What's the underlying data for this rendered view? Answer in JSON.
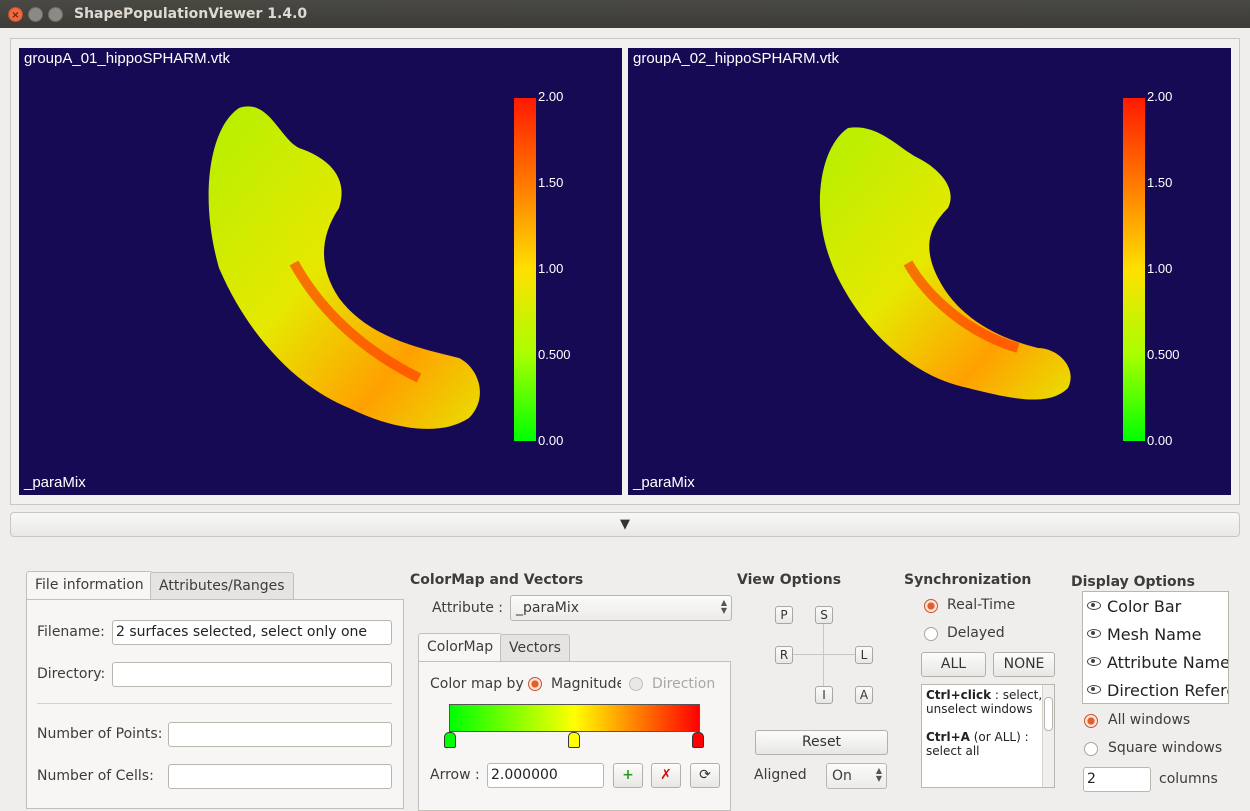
{
  "window": {
    "title": "ShapePopulationViewer 1.4.0"
  },
  "viewports": [
    {
      "mesh_name": "groupA_01_hippoSPHARM.vtk",
      "attribute": "_paraMix",
      "colorbar_ticks": [
        "2.00",
        "1.50",
        "1.00",
        "0.500",
        "0.00"
      ]
    },
    {
      "mesh_name": "groupA_02_hippoSPHARM.vtk",
      "attribute": "_paraMix",
      "colorbar_ticks": [
        "2.00",
        "1.50",
        "1.00",
        "0.500",
        "0.00"
      ]
    }
  ],
  "collapse_arrow": "▼",
  "file_panel": {
    "tabs": [
      "File information",
      "Attributes/Ranges"
    ],
    "filename_label": "Filename:",
    "filename_value": "2 surfaces selected, select only one",
    "directory_label": "Directory:",
    "points_label": "Number of Points:",
    "cells_label": "Number of Cells:"
  },
  "colormap": {
    "title": "ColorMap and Vectors",
    "attribute_label": "Attribute :",
    "attribute_value": "_paraMix",
    "tabs": [
      "ColorMap",
      "Vectors"
    ],
    "colormap_by_label": "Color map by",
    "magnitude_label": "Magnitude",
    "direction_label": "Direction",
    "arrow_label": "Arrow :",
    "arrow_value": "2.000000",
    "add_symbol": "+",
    "delete_symbol": "✗",
    "reset_symbol": "⟳",
    "colors": {
      "low": "#00ff00",
      "mid": "#ffff00",
      "high": "#ff0000"
    }
  },
  "view_options": {
    "title": "View Options",
    "buttons": {
      "p": "P",
      "s": "S",
      "r": "R",
      "l": "L",
      "i": "I",
      "a": "A"
    },
    "reset_label": "Reset",
    "aligned_label": "Aligned",
    "aligned_value": "On"
  },
  "synchronization": {
    "title": "Synchronization",
    "realtime_label": "Real-Time",
    "delayed_label": "Delayed",
    "all_label": "ALL",
    "none_label": "NONE",
    "help": {
      "ctrl_click": "Ctrl+click",
      "ctrl_click_desc": " : select, unselect windows",
      "ctrl_a": "Ctrl+A",
      "ctrl_a_desc": " (or ALL) : select all"
    }
  },
  "display_options": {
    "title": "Display Options",
    "items": [
      "Color Bar",
      "Mesh Name",
      "Attribute Name",
      "Direction Reference"
    ],
    "all_windows_label": "All windows",
    "square_windows_label": "Square windows",
    "columns_value": "2",
    "columns_label": "columns"
  }
}
